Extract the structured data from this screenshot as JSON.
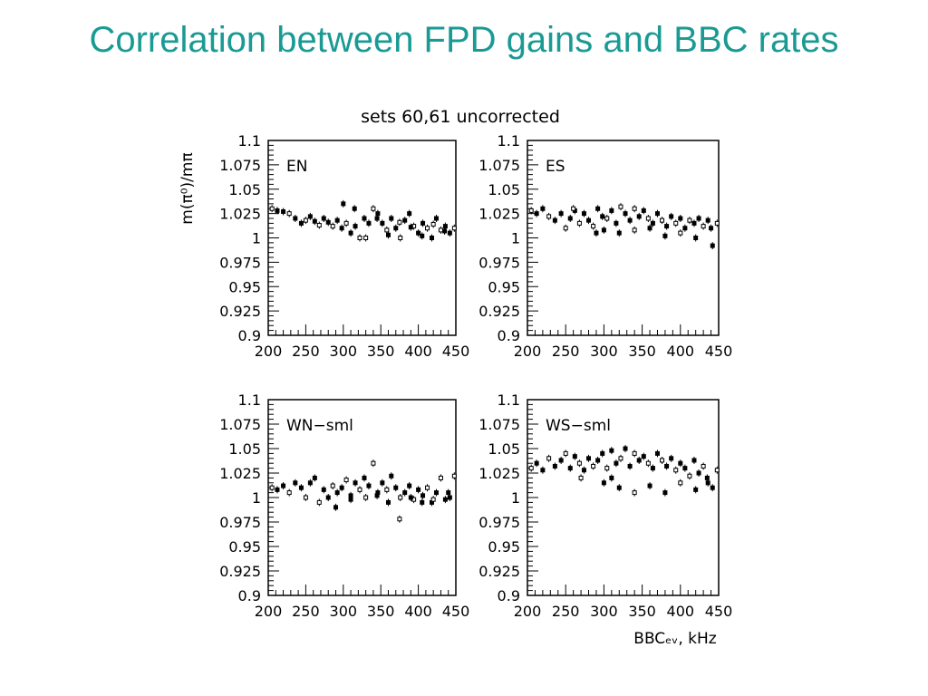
{
  "slide": {
    "title": "Correlation between FPD gains and BBC rates",
    "title_color": "#1a9a94"
  },
  "figure": {
    "title": "sets 60,61 uncorrected",
    "ylabel": "m(π⁰)/mπ",
    "xlabel": "BBCₑᵥ, kHz"
  },
  "chart_data": [
    {
      "type": "scatter",
      "label": "EN",
      "xlim": [
        200,
        450
      ],
      "ylim": [
        0.9,
        1.1
      ],
      "xticks": [
        "200",
        "250",
        "300",
        "350",
        "400",
        "450"
      ],
      "yticks": [
        "1.1",
        "1.075",
        "1.05",
        "1.025",
        "1",
        "0.975",
        "0.95",
        "0.925",
        "0.9"
      ],
      "x": [
        205,
        212,
        220,
        228,
        236,
        244,
        250,
        256,
        262,
        268,
        274,
        280,
        286,
        292,
        298,
        304,
        310,
        316,
        322,
        328,
        334,
        340,
        346,
        352,
        358,
        364,
        370,
        376,
        382,
        388,
        394,
        400,
        406,
        412,
        418,
        424,
        430,
        436,
        442,
        448,
        300,
        315,
        330,
        345,
        360,
        375,
        390,
        405,
        420,
        435
      ],
      "y": [
        1.03,
        1.028,
        1.027,
        1.025,
        1.02,
        1.015,
        1.018,
        1.022,
        1.017,
        1.013,
        1.02,
        1.016,
        1.012,
        1.018,
        1.01,
        1.015,
        1.005,
        1.012,
        1.0,
        1.02,
        1.015,
        1.03,
        1.025,
        1.015,
        1.008,
        1.02,
        1.01,
        1.0,
        1.018,
        1.025,
        1.012,
        1.005,
        1.015,
        1.01,
        1.0,
        1.02,
        1.008,
        1.012,
        1.005,
        1.01,
        1.035,
        1.03,
        1.0,
        1.02,
        1.003,
        1.016,
        1.011,
        1.002,
        1.014,
        1.007
      ]
    },
    {
      "type": "scatter",
      "label": "ES",
      "xlim": [
        200,
        450
      ],
      "ylim": [
        0.9,
        1.1
      ],
      "xticks": [
        "200",
        "250",
        "300",
        "350",
        "400",
        "450"
      ],
      "yticks": [
        "1.1",
        "1.075",
        "1.05",
        "1.025",
        "1",
        "0.975",
        "0.95",
        "0.925",
        "0.9"
      ],
      "x": [
        205,
        212,
        220,
        228,
        236,
        244,
        250,
        256,
        262,
        268,
        274,
        280,
        286,
        292,
        298,
        304,
        310,
        316,
        322,
        328,
        334,
        340,
        346,
        352,
        358,
        364,
        370,
        376,
        382,
        388,
        394,
        400,
        406,
        412,
        418,
        424,
        430,
        436,
        442,
        448,
        300,
        320,
        340,
        360,
        380,
        400,
        420,
        440,
        260,
        290
      ],
      "y": [
        1.028,
        1.025,
        1.03,
        1.022,
        1.018,
        1.025,
        1.01,
        1.02,
        1.028,
        1.015,
        1.025,
        1.018,
        1.012,
        1.03,
        1.022,
        1.02,
        1.028,
        1.015,
        1.032,
        1.025,
        1.018,
        1.03,
        1.022,
        1.028,
        1.02,
        1.015,
        1.025,
        1.018,
        1.012,
        1.022,
        1.015,
        1.02,
        1.01,
        1.018,
        1.015,
        1.02,
        1.012,
        1.018,
        0.992,
        1.015,
        1.008,
        1.005,
        1.008,
        1.01,
        1.002,
        1.005,
        1.0,
        1.01,
        1.03,
        1.005
      ]
    },
    {
      "type": "scatter",
      "label": "WN−sml",
      "xlim": [
        200,
        450
      ],
      "ylim": [
        0.9,
        1.1
      ],
      "xticks": [
        "200",
        "250",
        "300",
        "350",
        "400",
        "450"
      ],
      "yticks": [
        "1.1",
        "1.075",
        "1.05",
        "1.025",
        "1",
        "0.975",
        "0.95",
        "0.925",
        "0.9"
      ],
      "x": [
        205,
        212,
        220,
        228,
        236,
        244,
        250,
        256,
        262,
        268,
        274,
        280,
        286,
        292,
        298,
        304,
        310,
        316,
        322,
        328,
        334,
        340,
        346,
        352,
        358,
        364,
        370,
        376,
        382,
        388,
        394,
        400,
        406,
        412,
        418,
        424,
        430,
        436,
        442,
        448,
        290,
        310,
        330,
        345,
        360,
        375,
        390,
        405,
        420,
        440
      ],
      "y": [
        1.01,
        1.008,
        1.012,
        1.005,
        1.015,
        1.01,
        1.0,
        1.015,
        1.02,
        0.995,
        1.008,
        1.0,
        1.012,
        1.005,
        1.01,
        1.018,
        1.002,
        1.015,
        1.008,
        1.02,
        1.012,
        1.035,
        1.005,
        1.015,
        1.008,
        1.022,
        1.01,
        1.0,
        1.005,
        1.012,
        0.998,
        1.008,
        1.002,
        1.01,
        0.995,
        1.005,
        1.02,
        0.998,
        1.0,
        1.022,
        0.99,
        0.998,
        1.0,
        1.002,
        0.995,
        0.978,
        1.0,
        0.995,
        0.998,
        1.005
      ]
    },
    {
      "type": "scatter",
      "label": "WS−sml",
      "xlim": [
        200,
        450
      ],
      "ylim": [
        0.9,
        1.1
      ],
      "xticks": [
        "200",
        "250",
        "300",
        "350",
        "400",
        "450"
      ],
      "yticks": [
        "1.1",
        "1.075",
        "1.05",
        "1.025",
        "1",
        "0.975",
        "0.95",
        "0.925",
        "0.9"
      ],
      "x": [
        205,
        212,
        220,
        228,
        236,
        244,
        250,
        256,
        262,
        268,
        274,
        280,
        286,
        292,
        298,
        304,
        310,
        316,
        322,
        328,
        334,
        340,
        346,
        352,
        358,
        364,
        370,
        376,
        382,
        388,
        394,
        400,
        406,
        412,
        418,
        424,
        430,
        436,
        442,
        448,
        300,
        320,
        340,
        360,
        380,
        400,
        420,
        435,
        270,
        310
      ],
      "y": [
        1.03,
        1.035,
        1.028,
        1.04,
        1.032,
        1.038,
        1.045,
        1.03,
        1.042,
        1.035,
        1.028,
        1.04,
        1.032,
        1.038,
        1.045,
        1.03,
        1.048,
        1.035,
        1.04,
        1.05,
        1.032,
        1.045,
        1.038,
        1.042,
        1.035,
        1.03,
        1.045,
        1.038,
        1.032,
        1.04,
        1.028,
        1.035,
        1.03,
        1.022,
        1.038,
        1.025,
        1.032,
        1.015,
        1.01,
        1.028,
        1.015,
        1.01,
        1.005,
        1.012,
        1.005,
        1.015,
        1.008,
        1.02,
        1.02,
        1.02
      ]
    }
  ]
}
